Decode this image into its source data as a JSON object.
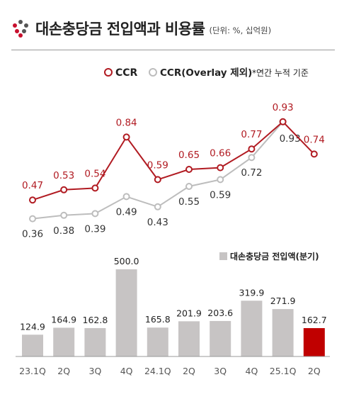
{
  "header": {
    "title": "대손충당금 전입액과 비용률",
    "unit": "(단위: %, 십억원)"
  },
  "legend": {
    "ccr": "CCR",
    "ccr_ex": "CCR(Overlay 제외)",
    "note": "*연간 누적 기준",
    "bars": "대손충당금 전입액(분기)"
  },
  "colors": {
    "ccr": "#b11b22",
    "ccr_ex": "#bdbdbd",
    "bar": "#c7c4c4",
    "bar_highlight": "#c00000",
    "logo_dark": "#555555",
    "logo_red": "#c8102e"
  },
  "chart_data": {
    "type": "bar+line",
    "categories": [
      "23.1Q",
      "2Q",
      "3Q",
      "4Q",
      "24.1Q",
      "2Q",
      "3Q",
      "4Q",
      "25.1Q",
      "2Q"
    ],
    "bar_series": {
      "name": "대손충당금 전입액(분기)",
      "values": [
        124.9,
        164.9,
        162.8,
        500.0,
        165.8,
        201.9,
        203.6,
        319.9,
        271.9,
        162.7
      ],
      "labels": [
        "124.9",
        "164.9",
        "162.8",
        "500.0",
        "165.8",
        "201.9",
        "203.6",
        "319.9",
        "271.9",
        "162.7"
      ],
      "highlight_index": 9
    },
    "line_series": [
      {
        "name": "CCR",
        "values": [
          0.47,
          0.53,
          0.54,
          0.84,
          0.59,
          0.65,
          0.66,
          0.77,
          0.93,
          0.74
        ],
        "labels": [
          "0.47",
          "0.53",
          "0.54",
          "0.84",
          "0.59",
          "0.65",
          "0.66",
          "0.77",
          "0.93",
          "0.74"
        ]
      },
      {
        "name": "CCR(Overlay 제외)",
        "values": [
          0.36,
          0.38,
          0.39,
          0.49,
          0.43,
          0.55,
          0.59,
          0.72,
          0.93,
          null
        ],
        "labels": [
          "0.36",
          "0.38",
          "0.39",
          "0.49",
          "0.43",
          "0.55",
          "0.59",
          "0.72",
          "0.93",
          ""
        ]
      }
    ]
  }
}
